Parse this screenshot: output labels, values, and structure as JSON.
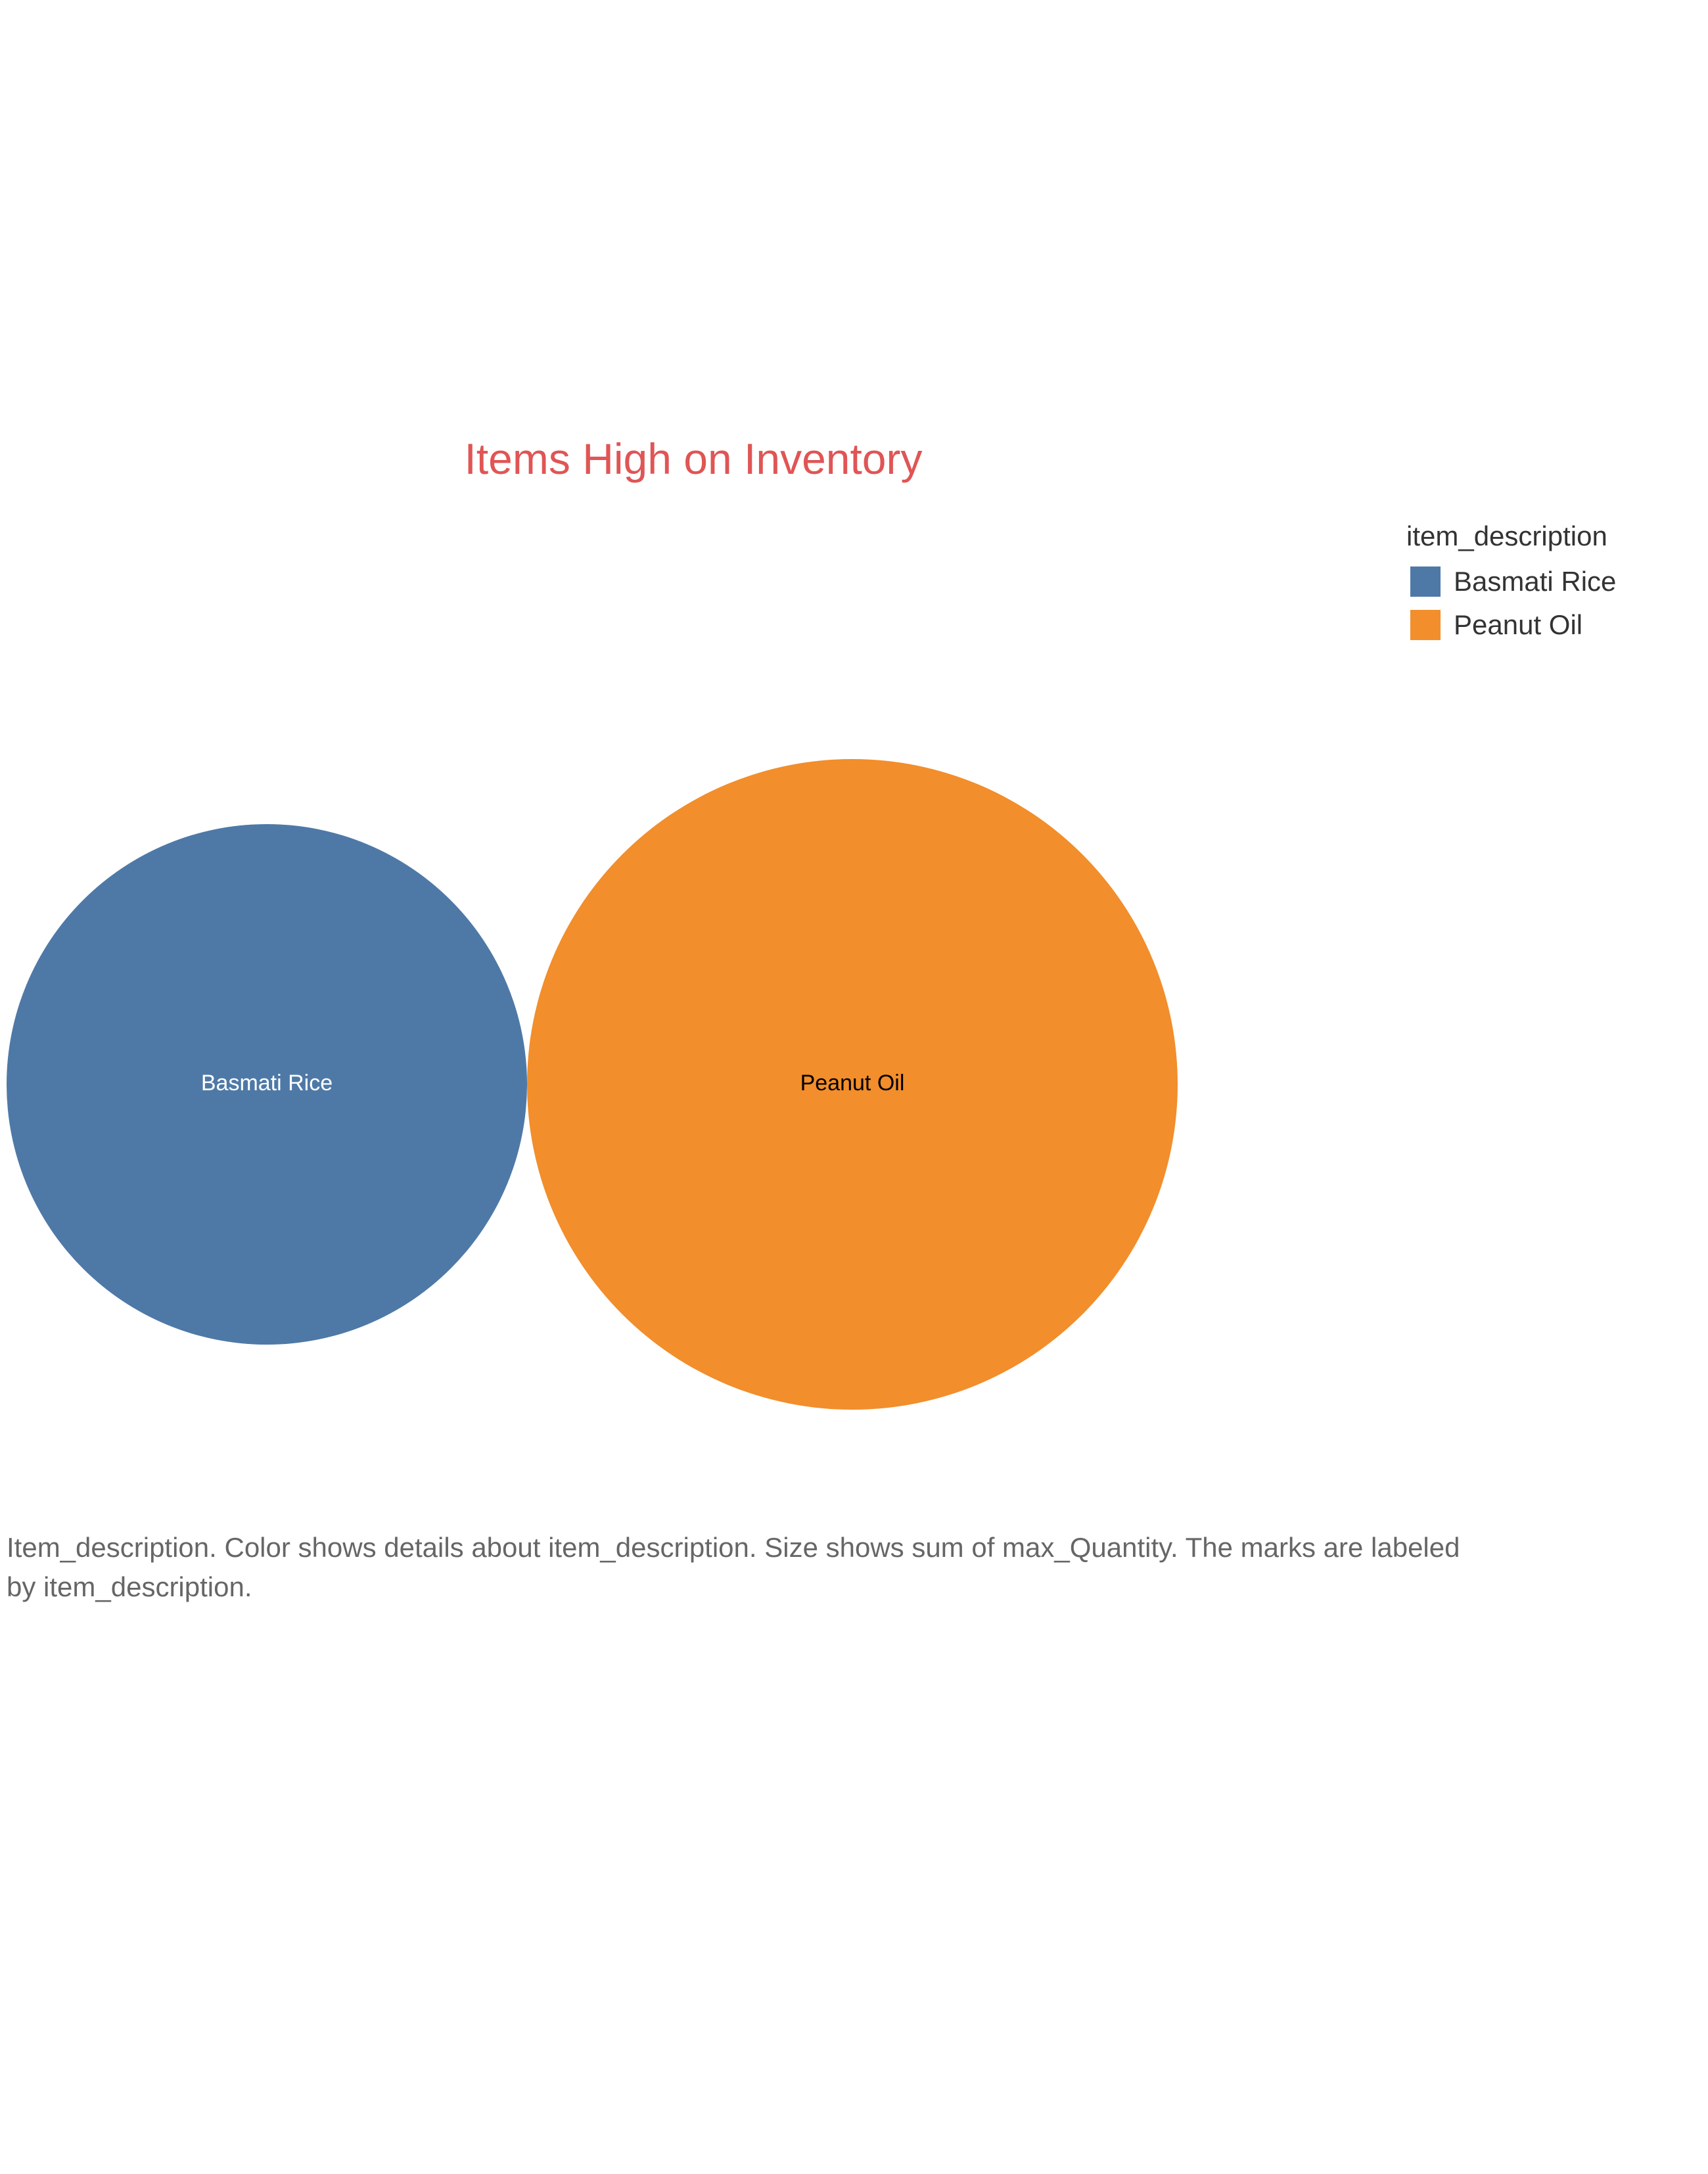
{
  "chart_data": {
    "type": "bubble",
    "title": "Items High on Inventory",
    "legend": {
      "title": "item_description",
      "placement": "top-right"
    },
    "series": [
      {
        "name": "Basmati Rice",
        "color": "#4e79a7",
        "label_color": "#ffffff",
        "relative_size": 0.64
      },
      {
        "name": "Peanut Oil",
        "color": "#f28e2b",
        "label_color": "#000000",
        "relative_size": 1.0
      }
    ],
    "caption": "Item_description.  Color shows details about item_description.  Size shows sum of max_Quantity.  The marks are labeled by item_description."
  }
}
